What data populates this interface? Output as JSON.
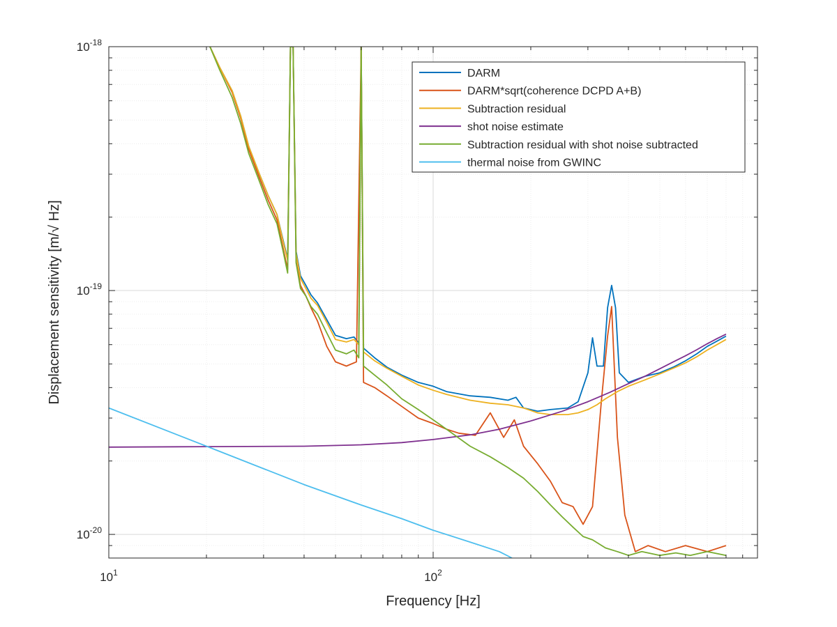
{
  "chart_data": {
    "type": "line",
    "title": "",
    "xlabel": "Frequency [Hz]",
    "ylabel": "Displacement sensitivity [m/√ Hz]",
    "x_scale": "log",
    "y_scale": "log",
    "xlim": [
      10,
      1000
    ],
    "ylim": [
      8e-21,
      1e-18
    ],
    "grid": true,
    "legend_position": "top-right",
    "x_ticks": [
      {
        "value": 10,
        "base": "10",
        "exp": "1"
      },
      {
        "value": 100,
        "base": "10",
        "exp": "2"
      }
    ],
    "y_ticks": [
      {
        "value": 1e-20,
        "base": "10",
        "exp": "-20"
      },
      {
        "value": 1e-19,
        "base": "10",
        "exp": "-19"
      },
      {
        "value": 1e-18,
        "base": "10",
        "exp": "-18"
      }
    ],
    "series": [
      {
        "name": "DARM",
        "color": "#0072BD",
        "points": [
          [
            20.5,
            1e-18
          ],
          [
            22,
            8.2e-19
          ],
          [
            24,
            6.6e-19
          ],
          [
            25.5,
            5.2e-19
          ],
          [
            27,
            3.9e-19
          ],
          [
            29,
            3.05e-19
          ],
          [
            31,
            2.45e-19
          ],
          [
            33,
            2.05e-19
          ],
          [
            34.5,
            1.6e-19
          ],
          [
            35.6,
            1.35e-19
          ],
          [
            36.3,
            1e-18
          ],
          [
            37,
            1e-18
          ],
          [
            37.8,
            1.45e-19
          ],
          [
            39,
            1.15e-19
          ],
          [
            40.5,
            1.05e-19
          ],
          [
            42,
            9.6e-20
          ],
          [
            44,
            8.9e-20
          ],
          [
            47,
            7.6e-20
          ],
          [
            50,
            6.55e-20
          ],
          [
            54,
            6.35e-20
          ],
          [
            57,
            6.45e-20
          ],
          [
            59,
            6.1e-20
          ],
          [
            60,
            1e-18
          ],
          [
            61,
            5.8e-20
          ],
          [
            66,
            5.3e-20
          ],
          [
            72,
            4.85e-20
          ],
          [
            80,
            4.5e-20
          ],
          [
            90,
            4.2e-20
          ],
          [
            100,
            4.05e-20
          ],
          [
            110,
            3.85e-20
          ],
          [
            130,
            3.7e-20
          ],
          [
            150,
            3.65e-20
          ],
          [
            170,
            3.55e-20
          ],
          [
            180,
            3.65e-20
          ],
          [
            190,
            3.3e-20
          ],
          [
            210,
            3.2e-20
          ],
          [
            230,
            3.25e-20
          ],
          [
            260,
            3.3e-20
          ],
          [
            280,
            3.5e-20
          ],
          [
            300,
            4.6e-20
          ],
          [
            310,
            6.4e-20
          ],
          [
            320,
            4.9e-20
          ],
          [
            335,
            4.9e-20
          ],
          [
            345,
            8.5e-20
          ],
          [
            355,
            1.05e-19
          ],
          [
            365,
            8.5e-20
          ],
          [
            375,
            4.6e-20
          ],
          [
            400,
            4.2e-20
          ],
          [
            450,
            4.45e-20
          ],
          [
            500,
            4.6e-20
          ],
          [
            550,
            4.85e-20
          ],
          [
            600,
            5.15e-20
          ],
          [
            650,
            5.5e-20
          ],
          [
            700,
            5.9e-20
          ],
          [
            750,
            6.2e-20
          ],
          [
            800,
            6.5e-20
          ]
        ]
      },
      {
        "name": "DARM*sqrt(coherence DCPD A+B)",
        "color": "#D95319",
        "points": [
          [
            20.5,
            1e-18
          ],
          [
            22,
            8.2e-19
          ],
          [
            24,
            6.5e-19
          ],
          [
            25.5,
            5.1e-19
          ],
          [
            27,
            3.8e-19
          ],
          [
            29,
            2.95e-19
          ],
          [
            31,
            2.35e-19
          ],
          [
            33,
            1.95e-19
          ],
          [
            34.5,
            1.48e-19
          ],
          [
            35.6,
            1.22e-19
          ],
          [
            36.3,
            1e-18
          ],
          [
            37,
            1e-18
          ],
          [
            37.8,
            1.32e-19
          ],
          [
            39,
            1.05e-19
          ],
          [
            40.5,
            9.5e-20
          ],
          [
            42,
            8.5e-20
          ],
          [
            44,
            7.5e-20
          ],
          [
            47,
            5.9e-20
          ],
          [
            50,
            5.1e-20
          ],
          [
            54,
            4.9e-20
          ],
          [
            58,
            5.1e-20
          ],
          [
            60,
            1e-18
          ],
          [
            61,
            4.2e-20
          ],
          [
            66,
            4e-20
          ],
          [
            72,
            3.7e-20
          ],
          [
            80,
            3.35e-20
          ],
          [
            90,
            3e-20
          ],
          [
            100,
            2.85e-20
          ],
          [
            110,
            2.7e-20
          ],
          [
            120,
            2.6e-20
          ],
          [
            135,
            2.55e-20
          ],
          [
            150,
            3.15e-20
          ],
          [
            165,
            2.5e-20
          ],
          [
            178,
            2.95e-20
          ],
          [
            190,
            2.3e-20
          ],
          [
            210,
            1.95e-20
          ],
          [
            230,
            1.65e-20
          ],
          [
            250,
            1.35e-20
          ],
          [
            270,
            1.3e-20
          ],
          [
            290,
            1.1e-20
          ],
          [
            310,
            1.3e-20
          ],
          [
            330,
            3.5e-20
          ],
          [
            345,
            6.5e-20
          ],
          [
            355,
            8.6e-20
          ],
          [
            370,
            2.5e-20
          ],
          [
            390,
            1.2e-20
          ],
          [
            420,
            8.5e-21
          ],
          [
            460,
            9e-21
          ],
          [
            520,
            8.5e-21
          ],
          [
            600,
            9e-21
          ],
          [
            700,
            8.5e-21
          ],
          [
            800,
            9e-21
          ]
        ]
      },
      {
        "name": "Subtraction residual",
        "color": "#EDB120",
        "points": [
          [
            20.5,
            1e-18
          ],
          [
            22,
            8.2e-19
          ],
          [
            24,
            6.6e-19
          ],
          [
            25.5,
            5.2e-19
          ],
          [
            27,
            3.9e-19
          ],
          [
            29,
            3.05e-19
          ],
          [
            31,
            2.45e-19
          ],
          [
            33,
            2.05e-19
          ],
          [
            34.5,
            1.58e-19
          ],
          [
            35.6,
            1.33e-19
          ],
          [
            36.3,
            1e-18
          ],
          [
            37,
            1e-18
          ],
          [
            37.8,
            1.42e-19
          ],
          [
            39,
            1.12e-19
          ],
          [
            40.5,
            1.02e-19
          ],
          [
            42,
            9.3e-20
          ],
          [
            44,
            8.7e-20
          ],
          [
            47,
            7.4e-20
          ],
          [
            50,
            6.3e-20
          ],
          [
            54,
            6.15e-20
          ],
          [
            57,
            6.3e-20
          ],
          [
            59,
            6e-20
          ],
          [
            60,
            1e-18
          ],
          [
            61,
            5.6e-20
          ],
          [
            66,
            5.15e-20
          ],
          [
            72,
            4.8e-20
          ],
          [
            80,
            4.45e-20
          ],
          [
            90,
            4.1e-20
          ],
          [
            100,
            3.9e-20
          ],
          [
            110,
            3.75e-20
          ],
          [
            130,
            3.55e-20
          ],
          [
            150,
            3.45e-20
          ],
          [
            170,
            3.4e-20
          ],
          [
            190,
            3.3e-20
          ],
          [
            210,
            3.15e-20
          ],
          [
            230,
            3.1e-20
          ],
          [
            260,
            3.1e-20
          ],
          [
            280,
            3.15e-20
          ],
          [
            300,
            3.25e-20
          ],
          [
            320,
            3.4e-20
          ],
          [
            340,
            3.6e-20
          ],
          [
            370,
            3.85e-20
          ],
          [
            400,
            4.05e-20
          ],
          [
            450,
            4.3e-20
          ],
          [
            500,
            4.55e-20
          ],
          [
            550,
            4.8e-20
          ],
          [
            600,
            5.05e-20
          ],
          [
            650,
            5.35e-20
          ],
          [
            700,
            5.7e-20
          ],
          [
            750,
            6e-20
          ],
          [
            800,
            6.3e-20
          ]
        ]
      },
      {
        "name": "shot noise estimate",
        "color": "#7E2F8E",
        "points": [
          [
            10,
            2.28e-20
          ],
          [
            20,
            2.29e-20
          ],
          [
            40,
            2.3e-20
          ],
          [
            60,
            2.33e-20
          ],
          [
            80,
            2.38e-20
          ],
          [
            100,
            2.45e-20
          ],
          [
            130,
            2.56e-20
          ],
          [
            160,
            2.7e-20
          ],
          [
            200,
            2.92e-20
          ],
          [
            250,
            3.2e-20
          ],
          [
            300,
            3.5e-20
          ],
          [
            350,
            3.82e-20
          ],
          [
            400,
            4.15e-20
          ],
          [
            450,
            4.45e-20
          ],
          [
            500,
            4.78e-20
          ],
          [
            550,
            5.1e-20
          ],
          [
            600,
            5.4e-20
          ],
          [
            650,
            5.72e-20
          ],
          [
            700,
            6.05e-20
          ],
          [
            750,
            6.35e-20
          ],
          [
            800,
            6.62e-20
          ]
        ]
      },
      {
        "name": "Subtraction residual with shot noise subtracted",
        "color": "#77AC30",
        "points": [
          [
            20.5,
            1e-18
          ],
          [
            22,
            8e-19
          ],
          [
            24,
            6.2e-19
          ],
          [
            25.5,
            4.85e-19
          ],
          [
            27,
            3.65e-19
          ],
          [
            29,
            2.85e-19
          ],
          [
            31,
            2.25e-19
          ],
          [
            33,
            1.88e-19
          ],
          [
            34.5,
            1.44e-19
          ],
          [
            35.6,
            1.18e-19
          ],
          [
            36.3,
            1e-18
          ],
          [
            37,
            1e-18
          ],
          [
            37.8,
            1.3e-19
          ],
          [
            39,
            1.02e-19
          ],
          [
            40.5,
            9.5e-20
          ],
          [
            42,
            8.6e-20
          ],
          [
            44,
            8e-20
          ],
          [
            47,
            6.7e-20
          ],
          [
            50,
            5.7e-20
          ],
          [
            54,
            5.5e-20
          ],
          [
            57,
            5.7e-20
          ],
          [
            59,
            5.3e-20
          ],
          [
            60,
            1e-18
          ],
          [
            61,
            4.9e-20
          ],
          [
            66,
            4.5e-20
          ],
          [
            72,
            4.1e-20
          ],
          [
            80,
            3.6e-20
          ],
          [
            90,
            3.25e-20
          ],
          [
            100,
            2.95e-20
          ],
          [
            110,
            2.7e-20
          ],
          [
            130,
            2.3e-20
          ],
          [
            150,
            2.08e-20
          ],
          [
            170,
            1.88e-20
          ],
          [
            190,
            1.7e-20
          ],
          [
            210,
            1.5e-20
          ],
          [
            230,
            1.32e-20
          ],
          [
            250,
            1.18e-20
          ],
          [
            270,
            1.07e-20
          ],
          [
            290,
            9.8e-21
          ],
          [
            310,
            9.5e-21
          ],
          [
            340,
            8.8e-21
          ],
          [
            370,
            8.5e-21
          ],
          [
            400,
            8.2e-21
          ],
          [
            440,
            8.5e-21
          ],
          [
            500,
            8.2e-21
          ],
          [
            560,
            8.4e-21
          ],
          [
            620,
            8.2e-21
          ],
          [
            700,
            8.5e-21
          ],
          [
            800,
            8.2e-21
          ]
        ]
      },
      {
        "name": "thermal noise from GWINC",
        "color": "#4DBEEE",
        "points": [
          [
            10,
            3.3e-20
          ],
          [
            20,
            2.3e-20
          ],
          [
            40,
            1.6e-20
          ],
          [
            60,
            1.32e-20
          ],
          [
            80,
            1.16e-20
          ],
          [
            100,
            1.04e-20
          ],
          [
            130,
            9.3e-21
          ],
          [
            160,
            8.5e-21
          ],
          [
            175,
            8e-21
          ]
        ]
      }
    ]
  }
}
